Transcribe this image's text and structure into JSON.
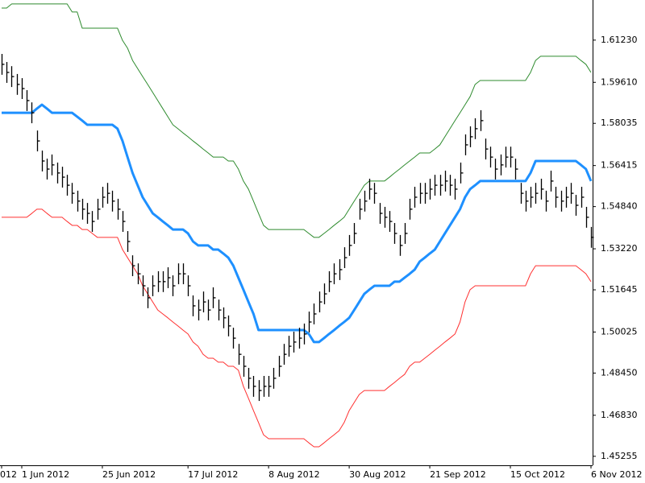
{
  "chart_data": {
    "type": "ohlc",
    "categories": [
      "012",
      null,
      null,
      null,
      "1 Jun 2012",
      null,
      null,
      null,
      null,
      null,
      null,
      null,
      null,
      null,
      null,
      null,
      null,
      null,
      null,
      null,
      "25 Jun 2012",
      null,
      null,
      null,
      null,
      null,
      null,
      null,
      null,
      null,
      null,
      null,
      null,
      null,
      null,
      null,
      null,
      "17 Jul 2012",
      null,
      null,
      null,
      null,
      null,
      null,
      null,
      null,
      null,
      null,
      null,
      null,
      null,
      null,
      null,
      "8 Aug 2012",
      null,
      null,
      null,
      null,
      null,
      null,
      null,
      null,
      null,
      null,
      null,
      null,
      null,
      null,
      null,
      "30 Aug 2012",
      null,
      null,
      null,
      null,
      null,
      null,
      null,
      null,
      null,
      null,
      null,
      null,
      null,
      null,
      null,
      "21 Sep 2012",
      null,
      null,
      null,
      null,
      null,
      null,
      null,
      null,
      null,
      null,
      null,
      null,
      null,
      null,
      null,
      "15 Oct 2012",
      null,
      null,
      null,
      null,
      null,
      null,
      null,
      null,
      null,
      null,
      null,
      null,
      null,
      null,
      null,
      "6 Nov 2012"
    ],
    "bar_color": "#000000",
    "high": [
      1.607,
      1.6039,
      1.6023,
      1.5993,
      1.5977,
      1.5931,
      1.5884,
      1.5776,
      1.5699,
      1.5668,
      1.5684,
      1.5653,
      1.5637,
      1.5606,
      1.5575,
      1.5545,
      1.5514,
      1.5498,
      1.5467,
      1.5514,
      1.556,
      1.5575,
      1.5545,
      1.5514,
      1.5467,
      1.539,
      1.5297,
      1.5266,
      1.522,
      1.5174,
      1.522,
      1.5236,
      1.5236,
      1.5251,
      1.522,
      1.5266,
      1.5266,
      1.522,
      1.5143,
      1.5127,
      1.5158,
      1.5127,
      1.5174,
      1.5127,
      1.5097,
      1.5066,
      1.5019,
      1.4957,
      1.4911,
      1.4865,
      1.4834,
      1.4818,
      1.4834,
      1.4834,
      1.4865,
      1.4911,
      1.4957,
      1.4988,
      1.5004,
      1.5019,
      1.5035,
      1.5081,
      1.5112,
      1.5158,
      1.5189,
      1.5236,
      1.5266,
      1.5282,
      1.5328,
      1.5375,
      1.5421,
      1.5514,
      1.5545,
      1.5591,
      1.5575,
      1.5498,
      1.5483,
      1.5467,
      1.5421,
      1.5375,
      1.5421,
      1.5514,
      1.556,
      1.5575,
      1.5575,
      1.5591,
      1.5606,
      1.5606,
      1.5622,
      1.5606,
      1.5591,
      1.5653,
      1.5761,
      1.5792,
      1.5823,
      1.5854,
      1.5745,
      1.5714,
      1.5668,
      1.5684,
      1.5714,
      1.5714,
      1.5668,
      1.5575,
      1.5545,
      1.556,
      1.5575,
      1.5591,
      1.5545,
      1.5622,
      1.556,
      1.5545,
      1.556,
      1.5575,
      1.5529,
      1.556,
      1.5483,
      1.5406
    ],
    "low": [
      1.599,
      1.5959,
      1.5943,
      1.5913,
      1.5897,
      1.5851,
      1.5804,
      1.5696,
      1.5619,
      1.5588,
      1.5604,
      1.5573,
      1.5557,
      1.5526,
      1.5495,
      1.5465,
      1.5434,
      1.5418,
      1.5387,
      1.5434,
      1.548,
      1.5495,
      1.5465,
      1.5434,
      1.5387,
      1.531,
      1.5217,
      1.5186,
      1.514,
      1.5094,
      1.514,
      1.5156,
      1.5156,
      1.5171,
      1.514,
      1.5186,
      1.5186,
      1.514,
      1.5063,
      1.5047,
      1.5078,
      1.5047,
      1.5094,
      1.5047,
      1.5017,
      1.4986,
      1.4939,
      1.4877,
      1.4831,
      1.4785,
      1.4754,
      1.4738,
      1.4754,
      1.4754,
      1.4785,
      1.4831,
      1.4877,
      1.4908,
      1.4924,
      1.4939,
      1.4955,
      1.5001,
      1.5032,
      1.5078,
      1.5109,
      1.5156,
      1.5186,
      1.5202,
      1.5248,
      1.5295,
      1.5341,
      1.5434,
      1.5465,
      1.5511,
      1.5495,
      1.5418,
      1.5403,
      1.5387,
      1.5341,
      1.5295,
      1.5341,
      1.5434,
      1.548,
      1.5495,
      1.5495,
      1.5511,
      1.5526,
      1.5526,
      1.5542,
      1.5526,
      1.5511,
      1.5573,
      1.5681,
      1.5712,
      1.5743,
      1.5774,
      1.5665,
      1.5634,
      1.5588,
      1.5604,
      1.5634,
      1.5634,
      1.5588,
      1.5495,
      1.5465,
      1.548,
      1.5495,
      1.5511,
      1.5465,
      1.5542,
      1.548,
      1.5465,
      1.548,
      1.5495,
      1.5449,
      1.548,
      1.5403,
      1.5326
    ],
    "close": [
      1.603,
      1.5999,
      1.5983,
      1.5953,
      1.5937,
      1.5891,
      1.5844,
      1.5736,
      1.5659,
      1.5628,
      1.5644,
      1.5613,
      1.5597,
      1.5566,
      1.5535,
      1.5505,
      1.5474,
      1.5458,
      1.5427,
      1.5474,
      1.552,
      1.5535,
      1.5505,
      1.5474,
      1.5427,
      1.535,
      1.5257,
      1.5226,
      1.518,
      1.5134,
      1.518,
      1.5196,
      1.5196,
      1.5211,
      1.518,
      1.5226,
      1.5226,
      1.518,
      1.5103,
      1.5087,
      1.5118,
      1.5087,
      1.5134,
      1.5087,
      1.5057,
      1.5026,
      1.4979,
      1.4917,
      1.4871,
      1.4825,
      1.4794,
      1.4778,
      1.4794,
      1.4794,
      1.4825,
      1.4871,
      1.4917,
      1.4948,
      1.4964,
      1.4979,
      1.4995,
      1.5041,
      1.5072,
      1.5118,
      1.5149,
      1.5196,
      1.5226,
      1.5242,
      1.5288,
      1.5335,
      1.5381,
      1.5474,
      1.5505,
      1.5551,
      1.5535,
      1.5458,
      1.5443,
      1.5427,
      1.5381,
      1.5335,
      1.5381,
      1.5474,
      1.552,
      1.5535,
      1.5535,
      1.5551,
      1.5566,
      1.5566,
      1.5582,
      1.5566,
      1.5551,
      1.5613,
      1.5721,
      1.5752,
      1.5783,
      1.5814,
      1.5705,
      1.5674,
      1.5628,
      1.5644,
      1.5674,
      1.5674,
      1.5628,
      1.5535,
      1.5505,
      1.552,
      1.5535,
      1.5551,
      1.5505,
      1.5582,
      1.552,
      1.5505,
      1.552,
      1.5535,
      1.5489,
      1.552,
      1.5443,
      1.5366
    ],
    "series": [
      {
        "color": "#2e8b2e",
        "width": 1,
        "values": [
          1.6246,
          1.6246,
          1.6262,
          1.6262,
          1.6262,
          1.6262,
          1.6262,
          1.6262,
          1.6262,
          1.6262,
          1.6262,
          1.6262,
          1.6262,
          1.6262,
          1.6231,
          1.6231,
          1.6169,
          1.6169,
          1.6169,
          1.6169,
          1.6169,
          1.6169,
          1.6169,
          1.6169,
          1.6122,
          1.6092,
          1.6045,
          1.6014,
          1.5983,
          1.5953,
          1.5922,
          1.5891,
          1.586,
          1.5829,
          1.5798,
          1.5783,
          1.5767,
          1.5752,
          1.5736,
          1.5721,
          1.5705,
          1.569,
          1.5674,
          1.5674,
          1.5674,
          1.5659,
          1.5659,
          1.5628,
          1.5582,
          1.5551,
          1.5505,
          1.5458,
          1.5412,
          1.5396,
          1.5396,
          1.5396,
          1.5396,
          1.5396,
          1.5396,
          1.5396,
          1.5396,
          1.5381,
          1.5366,
          1.5366,
          1.5381,
          1.5396,
          1.5412,
          1.5427,
          1.5443,
          1.5474,
          1.5505,
          1.5535,
          1.5566,
          1.5582,
          1.5582,
          1.5582,
          1.5582,
          1.5597,
          1.5613,
          1.5628,
          1.5644,
          1.5659,
          1.5674,
          1.569,
          1.569,
          1.569,
          1.5705,
          1.5721,
          1.5752,
          1.5783,
          1.5814,
          1.5844,
          1.5875,
          1.5906,
          1.5953,
          1.5968,
          1.5968,
          1.5968,
          1.5968,
          1.5968,
          1.5968,
          1.5968,
          1.5968,
          1.5968,
          1.5968,
          1.5999,
          1.6045,
          1.6061,
          1.6061,
          1.6061,
          1.6061,
          1.6061,
          1.6061,
          1.6061,
          1.6061,
          1.6045,
          1.603,
          1.5999
        ]
      },
      {
        "color": "#1e90ff",
        "width": 3,
        "values": [
          1.5844,
          1.5844,
          1.5844,
          1.5844,
          1.5844,
          1.5844,
          1.5844,
          1.586,
          1.5875,
          1.586,
          1.5844,
          1.5844,
          1.5844,
          1.5844,
          1.5844,
          1.5829,
          1.5814,
          1.5798,
          1.5798,
          1.5798,
          1.5798,
          1.5798,
          1.5798,
          1.5783,
          1.5736,
          1.5674,
          1.5613,
          1.5566,
          1.552,
          1.5489,
          1.5458,
          1.5443,
          1.5427,
          1.5412,
          1.5396,
          1.5396,
          1.5396,
          1.5381,
          1.535,
          1.5335,
          1.5335,
          1.5335,
          1.5319,
          1.5319,
          1.5304,
          1.5288,
          1.5257,
          1.5211,
          1.5165,
          1.5118,
          1.5072,
          1.501,
          1.501,
          1.501,
          1.501,
          1.501,
          1.501,
          1.501,
          1.501,
          1.501,
          1.501,
          1.4995,
          1.4964,
          1.4964,
          1.4979,
          1.4995,
          1.501,
          1.5026,
          1.5041,
          1.5057,
          1.5087,
          1.5118,
          1.5149,
          1.5165,
          1.518,
          1.518,
          1.518,
          1.518,
          1.5196,
          1.5196,
          1.5211,
          1.5226,
          1.5242,
          1.5273,
          1.5288,
          1.5304,
          1.5319,
          1.535,
          1.5381,
          1.5412,
          1.5443,
          1.5474,
          1.552,
          1.5551,
          1.5566,
          1.5582,
          1.5582,
          1.5582,
          1.5582,
          1.5582,
          1.5582,
          1.5582,
          1.5582,
          1.5582,
          1.5582,
          1.5613,
          1.5659,
          1.5659,
          1.5659,
          1.5659,
          1.5659,
          1.5659,
          1.5659,
          1.5659,
          1.5659,
          1.5644,
          1.5628,
          1.5582
        ]
      },
      {
        "color": "#ff3030",
        "width": 1,
        "values": [
          1.5443,
          1.5443,
          1.5443,
          1.5443,
          1.5443,
          1.5443,
          1.5458,
          1.5474,
          1.5474,
          1.5458,
          1.5443,
          1.5443,
          1.5443,
          1.5427,
          1.5412,
          1.5412,
          1.5396,
          1.5396,
          1.5381,
          1.5366,
          1.5366,
          1.5366,
          1.5366,
          1.5366,
          1.5319,
          1.5288,
          1.5257,
          1.5226,
          1.518,
          1.5149,
          1.5118,
          1.5087,
          1.5072,
          1.5057,
          1.5041,
          1.5026,
          1.501,
          1.4995,
          1.4964,
          1.4948,
          1.4917,
          1.4902,
          1.4902,
          1.4887,
          1.4887,
          1.4871,
          1.4871,
          1.4856,
          1.4794,
          1.4748,
          1.4701,
          1.4655,
          1.4608,
          1.4593,
          1.4593,
          1.4593,
          1.4593,
          1.4593,
          1.4593,
          1.4593,
          1.4593,
          1.4577,
          1.4562,
          1.4562,
          1.4577,
          1.4593,
          1.4608,
          1.4624,
          1.4655,
          1.4701,
          1.4732,
          1.4763,
          1.4778,
          1.4778,
          1.4778,
          1.4778,
          1.4778,
          1.4794,
          1.4809,
          1.4825,
          1.484,
          1.4871,
          1.4887,
          1.4887,
          1.4902,
          1.4917,
          1.4933,
          1.4948,
          1.4964,
          1.4979,
          1.4995,
          1.5041,
          1.5118,
          1.5165,
          1.518,
          1.518,
          1.518,
          1.518,
          1.518,
          1.518,
          1.518,
          1.518,
          1.518,
          1.518,
          1.518,
          1.5226,
          1.5257,
          1.5257,
          1.5257,
          1.5257,
          1.5257,
          1.5257,
          1.5257,
          1.5257,
          1.5257,
          1.5242,
          1.5226,
          1.5196
        ]
      }
    ],
    "ylim": [
      1.4491,
      1.6277
    ],
    "yticks": [
      {
        "value": 1.6123,
        "label": "1.61230"
      },
      {
        "value": 1.5961,
        "label": "1.59610"
      },
      {
        "value": 1.58035,
        "label": "1.58035"
      },
      {
        "value": 1.56415,
        "label": "1.56415"
      },
      {
        "value": 1.5484,
        "label": "1.54840"
      },
      {
        "value": 1.5322,
        "label": "1.53220"
      },
      {
        "value": 1.51645,
        "label": "1.51645"
      },
      {
        "value": 1.50025,
        "label": "1.50025"
      },
      {
        "value": 1.4845,
        "label": "1.48450"
      },
      {
        "value": 1.4683,
        "label": "1.46830"
      },
      {
        "value": 1.45255,
        "label": "1.45255"
      }
    ]
  }
}
